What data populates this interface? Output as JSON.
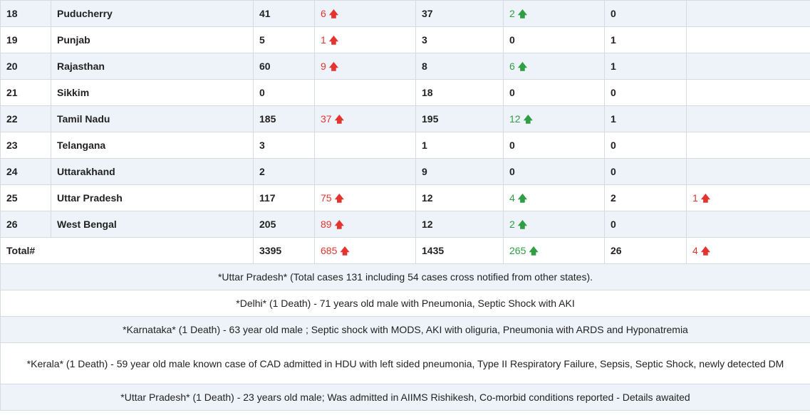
{
  "rows": [
    {
      "no": "18",
      "state": "Puducherry",
      "active": "41",
      "active_delta": "6",
      "cured": "37",
      "cured_delta": "2",
      "deaths": "0",
      "deaths_delta": ""
    },
    {
      "no": "19",
      "state": "Punjab",
      "active": "5",
      "active_delta": "1",
      "cured": "3",
      "cured_delta": "",
      "deaths": "1",
      "deaths_delta": ""
    },
    {
      "no": "20",
      "state": "Rajasthan",
      "active": "60",
      "active_delta": "9",
      "cured": "8",
      "cured_delta": "6",
      "deaths": "1",
      "deaths_delta": ""
    },
    {
      "no": "21",
      "state": "Sikkim",
      "active": "0",
      "active_delta": "",
      "cured": "18",
      "cured_delta": "",
      "deaths": "0",
      "deaths_delta": ""
    },
    {
      "no": "22",
      "state": "Tamil Nadu",
      "active": "185",
      "active_delta": "37",
      "cured": "195",
      "cured_delta": "12",
      "deaths": "1",
      "deaths_delta": ""
    },
    {
      "no": "23",
      "state": "Telangana",
      "active": "3",
      "active_delta": "",
      "cured": "1",
      "cured_delta": "",
      "deaths": "0",
      "deaths_delta": ""
    },
    {
      "no": "24",
      "state": "Uttarakhand",
      "active": "2",
      "active_delta": "",
      "cured": "9",
      "cured_delta": "",
      "deaths": "0",
      "deaths_delta": ""
    },
    {
      "no": "25",
      "state": "Uttar Pradesh",
      "active": "117",
      "active_delta": "75",
      "cured": "12",
      "cured_delta": "4",
      "deaths": "2",
      "deaths_delta": "1"
    },
    {
      "no": "26",
      "state": "West Bengal",
      "active": "205",
      "active_delta": "89",
      "cured": "12",
      "cured_delta": "2",
      "deaths": "0",
      "deaths_delta": ""
    }
  ],
  "cured_zero_rows": [
    "19",
    "21",
    "23",
    "24"
  ],
  "total": {
    "label": "Total#",
    "active": "3395",
    "active_delta": "685",
    "cured": "1435",
    "cured_delta": "265",
    "deaths": "26",
    "deaths_delta": "4"
  },
  "notes": [
    "*Uttar Pradesh* (Total cases 131 including 54 cases cross notified from other states).",
    "*Delhi* (1 Death) - 71 years old male with Pneumonia, Septic Shock with AKI",
    "*Karnataka* (1 Death) - 63 year old male ; Septic shock with MODS, AKI with oliguria, Pneumonia with ARDS and Hyponatremia",
    "*Kerala* (1 Death) - 59 year old male known case of CAD admitted in HDU with left sided pneumonia, Type II Respiratory Failure, Sepsis, Septic Shock, newly detected DM",
    "*Uttar Pradesh* (1 Death) - 23 years old male; Was admitted in AIIMS Rishikesh, Co-morbid conditions reported - Details awaited"
  ],
  "colors": {
    "up_red": "#e3342f",
    "up_green": "#2f9e44",
    "row_alt": "#eef3f9"
  },
  "icons": {
    "increase": "arrow-up-icon"
  }
}
